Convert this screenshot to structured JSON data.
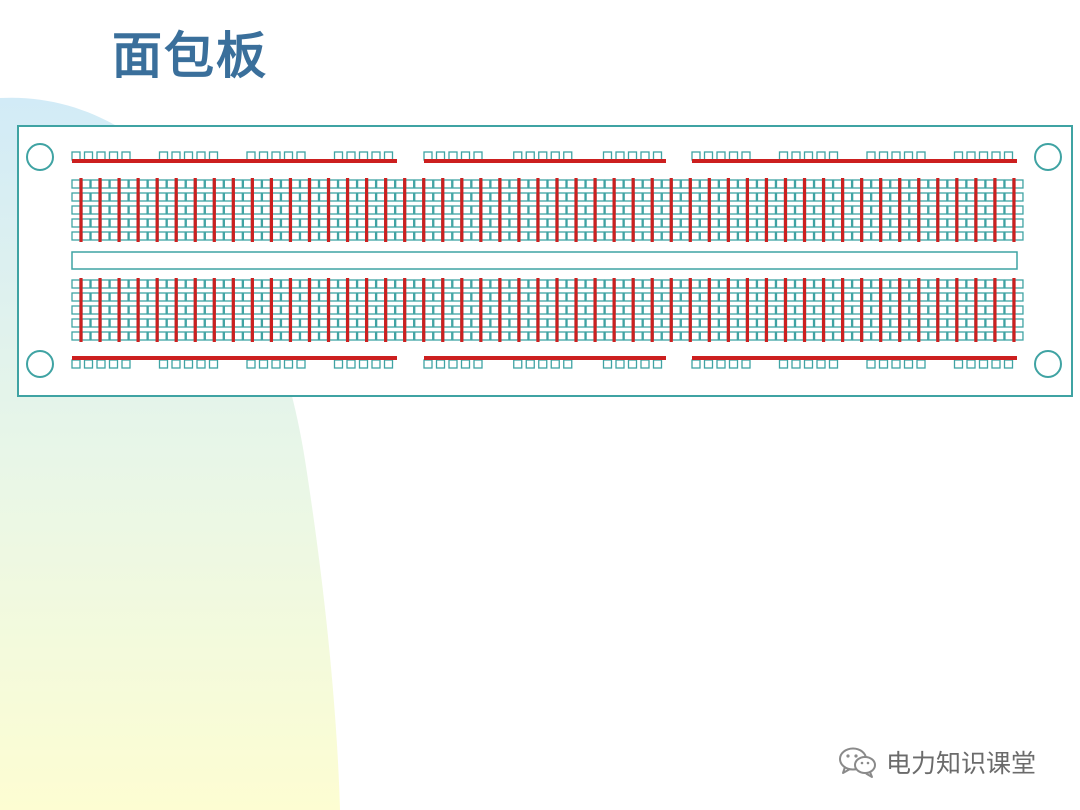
{
  "slide": {
    "title": "面包板"
  },
  "watermark": {
    "text": "电力知识课堂",
    "icon": "wechat-icon"
  },
  "colors": {
    "title": "#3a6f9b",
    "board_outline": "#3fa3a3",
    "hole": "#3fa3a3",
    "bus_strip": "#cc1f1f",
    "watermark_text": "#6b6b6b",
    "background_gradient": [
      "#d2ebf7",
      "#fdfdd2"
    ]
  },
  "breadboard": {
    "columns": 50,
    "rows_per_block": 5,
    "terminal_blocks": 2,
    "power_rails": 2,
    "rail_segments": 3,
    "mounting_holes": 4
  }
}
